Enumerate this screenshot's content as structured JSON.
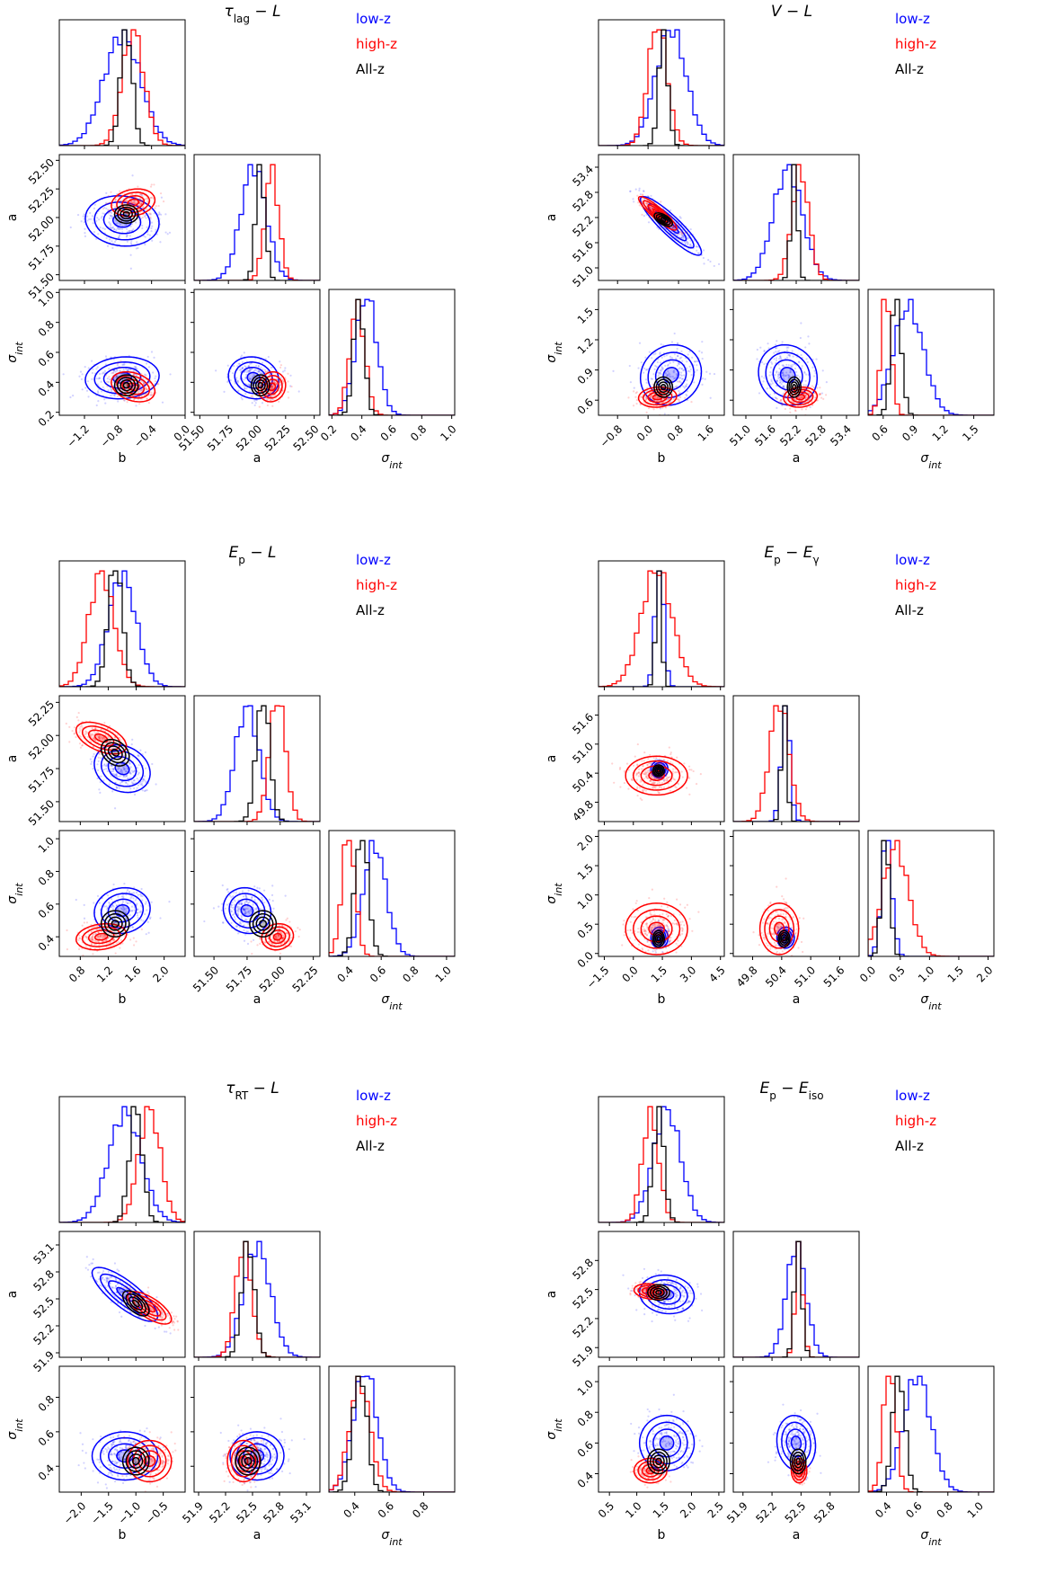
{
  "figure_type": "corner plots of posterior distributions",
  "colors": {
    "low": "#0000ff",
    "high": "#ff0000",
    "all": "#000000"
  },
  "chart_data": [
    {
      "type": "corner",
      "title": "τ_lag − L",
      "legend": [
        "low-z",
        "high-z",
        "All-z"
      ],
      "params": [
        "b",
        "a",
        "σ_int"
      ],
      "ranges": [
        [
          -1.5,
          0.0
        ],
        [
          51.45,
          52.55
        ],
        [
          0.18,
          1.02
        ]
      ],
      "ticks": [
        {
          "values": [
            -1.2,
            -0.8,
            -0.4,
            0.0
          ],
          "labels": [
            "−1.2",
            "−0.8",
            "−0.4",
            "0.0"
          ]
        },
        {
          "values": [
            51.5,
            51.75,
            52.0,
            52.25,
            52.5
          ],
          "labels": [
            "51.50",
            "51.75",
            "52.00",
            "52.25",
            "52.50"
          ]
        },
        {
          "values": [
            0.2,
            0.4,
            0.6,
            0.8,
            1.0
          ],
          "labels": [
            "0.2",
            "0.4",
            "0.6",
            "0.8",
            "1.0"
          ]
        }
      ],
      "series": [
        {
          "name": "low-z",
          "mean": [
            -0.75,
            51.97,
            0.43
          ],
          "std": [
            0.22,
            0.11,
            0.07
          ],
          "rho": [
            -0.1,
            0.1,
            -0.1
          ]
        },
        {
          "name": "high-z",
          "mean": [
            -0.62,
            52.13,
            0.37
          ],
          "std": [
            0.13,
            0.06,
            0.05
          ],
          "rho": [
            0.2,
            -0.3,
            0.1
          ]
        },
        {
          "name": "All-z",
          "mean": [
            -0.7,
            52.03,
            0.38
          ],
          "std": [
            0.07,
            0.04,
            0.035
          ],
          "rho": [
            0.0,
            0.0,
            0.0
          ]
        }
      ]
    },
    {
      "type": "corner",
      "title": "V − L",
      "legend": [
        "low-z",
        "high-z",
        "All-z"
      ],
      "params": [
        "b",
        "a",
        "σ_int"
      ],
      "ranges": [
        [
          -1.3,
          2.0
        ],
        [
          50.7,
          53.7
        ],
        [
          0.45,
          1.7
        ]
      ],
      "ticks": [
        {
          "values": [
            -0.8,
            0.0,
            0.8,
            1.6
          ],
          "labels": [
            "−0.8",
            "0.0",
            "0.8",
            "1.6"
          ]
        },
        {
          "values": [
            51.0,
            51.6,
            52.2,
            52.8,
            53.4
          ],
          "labels": [
            "51.0",
            "51.6",
            "52.2",
            "52.8",
            "53.4"
          ]
        },
        {
          "values": [
            0.6,
            0.9,
            1.2,
            1.5
          ],
          "labels": [
            "0.6",
            "0.9",
            "1.2",
            "1.5"
          ]
        }
      ],
      "series": [
        {
          "name": "low-z",
          "mean": [
            0.6,
            52.0,
            0.85
          ],
          "std": [
            0.4,
            0.35,
            0.15
          ],
          "rho": [
            -0.9,
            0.1,
            -0.1
          ]
        },
        {
          "name": "high-z",
          "mean": [
            0.25,
            52.3,
            0.63
          ],
          "std": [
            0.25,
            0.2,
            0.05
          ],
          "rho": [
            -0.9,
            0.1,
            0.1
          ]
        },
        {
          "name": "All-z",
          "mean": [
            0.4,
            52.15,
            0.73
          ],
          "std": [
            0.12,
            0.08,
            0.05
          ],
          "rho": [
            -0.6,
            0.0,
            0.0
          ]
        }
      ]
    },
    {
      "type": "corner",
      "title": "E_p − L",
      "legend": [
        "low-z",
        "high-z",
        "All-z"
      ],
      "params": [
        "b",
        "a",
        "σ_int"
      ],
      "ranges": [
        [
          0.5,
          2.3
        ],
        [
          51.35,
          52.3
        ],
        [
          0.28,
          1.05
        ]
      ],
      "ticks": [
        {
          "values": [
            0.8,
            1.2,
            1.6,
            2.0
          ],
          "labels": [
            "0.8",
            "1.2",
            "1.6",
            "2.0"
          ]
        },
        {
          "values": [
            51.5,
            51.75,
            52.0,
            52.25
          ],
          "labels": [
            "51.50",
            "51.75",
            "52.00",
            "52.25"
          ]
        },
        {
          "values": [
            0.4,
            0.6,
            0.8,
            1.0
          ],
          "labels": [
            "0.4",
            "0.6",
            "0.8",
            "1.0"
          ]
        }
      ],
      "series": [
        {
          "name": "low-z",
          "mean": [
            1.4,
            51.75,
            0.56
          ],
          "std": [
            0.2,
            0.09,
            0.07
          ],
          "rho": [
            -0.2,
            0.1,
            -0.1
          ]
        },
        {
          "name": "high-z",
          "mean": [
            1.1,
            51.98,
            0.4
          ],
          "std": [
            0.18,
            0.06,
            0.04
          ],
          "rho": [
            -0.5,
            0.2,
            0.1
          ]
        },
        {
          "name": "All-z",
          "mean": [
            1.3,
            51.87,
            0.48
          ],
          "std": [
            0.1,
            0.05,
            0.04
          ],
          "rho": [
            -0.3,
            0.0,
            0.0
          ]
        }
      ]
    },
    {
      "type": "corner",
      "title": "E_p − E_γ",
      "legend": [
        "low-z",
        "high-z",
        "All-z"
      ],
      "params": [
        "b",
        "a",
        "σ_int"
      ],
      "ranges": [
        [
          -1.8,
          4.7
        ],
        [
          49.4,
          52.0
        ],
        [
          -0.05,
          2.1
        ]
      ],
      "ticks": [
        {
          "values": [
            -1.5,
            0.0,
            1.5,
            3.0,
            4.5
          ],
          "labels": [
            "−1.5",
            "0.0",
            "1.5",
            "3.0",
            "4.5"
          ]
        },
        {
          "values": [
            49.8,
            50.4,
            51.0,
            51.6
          ],
          "labels": [
            "49.8",
            "50.4",
            "51.0",
            "51.6"
          ]
        },
        {
          "values": [
            0.0,
            0.5,
            1.0,
            1.5,
            2.0
          ],
          "labels": [
            "0.0",
            "0.5",
            "1.0",
            "1.5",
            "2.0"
          ]
        }
      ],
      "series": [
        {
          "name": "low-z",
          "mean": [
            1.35,
            50.48,
            0.27
          ],
          "std": [
            0.22,
            0.09,
            0.09
          ],
          "rho": [
            0.0,
            0.0,
            0.0
          ]
        },
        {
          "name": "high-z",
          "mean": [
            1.2,
            50.35,
            0.42
          ],
          "std": [
            0.8,
            0.2,
            0.22
          ],
          "rho": [
            0.0,
            0.0,
            0.0
          ]
        },
        {
          "name": "All-z",
          "mean": [
            1.3,
            50.45,
            0.25
          ],
          "std": [
            0.15,
            0.06,
            0.07
          ],
          "rho": [
            0.0,
            0.0,
            0.0
          ]
        }
      ]
    },
    {
      "type": "corner",
      "title": "τ_RT − L",
      "legend": [
        "low-z",
        "high-z",
        "All-z"
      ],
      "params": [
        "b",
        "a",
        "σ_int"
      ],
      "ranges": [
        [
          -2.4,
          -0.1
        ],
        [
          51.85,
          53.25
        ],
        [
          0.25,
          0.98
        ]
      ],
      "ticks": [
        {
          "values": [
            -2.0,
            -1.5,
            -1.0,
            -0.5
          ],
          "labels": [
            "−2.0",
            "−1.5",
            "−1.0",
            "−0.5"
          ]
        },
        {
          "values": [
            51.9,
            52.2,
            52.5,
            52.8,
            53.1
          ],
          "labels": [
            "51.9",
            "52.2",
            "52.5",
            "52.8",
            "53.1"
          ]
        },
        {
          "values": [
            0.4,
            0.6,
            0.8
          ],
          "labels": [
            "0.4",
            "0.6",
            "0.8"
          ]
        }
      ],
      "series": [
        {
          "name": "low-z",
          "mean": [
            -1.2,
            52.55,
            0.46
          ],
          "std": [
            0.3,
            0.15,
            0.07
          ],
          "rho": [
            -0.8,
            0.0,
            0.0
          ]
        },
        {
          "name": "high-z",
          "mean": [
            -0.75,
            52.4,
            0.43
          ],
          "std": [
            0.2,
            0.09,
            0.06
          ],
          "rho": [
            -0.7,
            0.0,
            0.0
          ]
        },
        {
          "name": "All-z",
          "mean": [
            -1.0,
            52.45,
            0.43
          ],
          "std": [
            0.12,
            0.07,
            0.04
          ],
          "rho": [
            -0.6,
            0.0,
            0.0
          ]
        }
      ]
    },
    {
      "type": "corner",
      "title": "E_p − E_iso",
      "legend": [
        "low-z",
        "high-z",
        "All-z"
      ],
      "params": [
        "b",
        "a",
        "σ_int"
      ],
      "ranges": [
        [
          0.3,
          2.6
        ],
        [
          51.8,
          53.1
        ],
        [
          0.28,
          1.1
        ]
      ],
      "ticks": [
        {
          "values": [
            0.5,
            1.0,
            1.5,
            2.0,
            2.5
          ],
          "labels": [
            "0.5",
            "1.0",
            "1.5",
            "2.0",
            "2.5"
          ]
        },
        {
          "values": [
            51.9,
            52.2,
            52.5,
            52.8
          ],
          "labels": [
            "51.9",
            "52.2",
            "52.5",
            "52.8"
          ]
        },
        {
          "values": [
            0.4,
            0.6,
            0.8,
            1.0
          ],
          "labels": [
            "0.4",
            "0.6",
            "0.8",
            "1.0"
          ]
        }
      ],
      "series": [
        {
          "name": "low-z",
          "mean": [
            1.55,
            52.45,
            0.6
          ],
          "std": [
            0.25,
            0.1,
            0.09
          ],
          "rho": [
            -0.1,
            0.0,
            -0.1
          ]
        },
        {
          "name": "high-z",
          "mean": [
            1.25,
            52.48,
            0.42
          ],
          "std": [
            0.15,
            0.04,
            0.04
          ],
          "rho": [
            -0.2,
            0.0,
            0.0
          ]
        },
        {
          "name": "All-z",
          "mean": [
            1.4,
            52.47,
            0.48
          ],
          "std": [
            0.1,
            0.04,
            0.04
          ],
          "rho": [
            0.0,
            0.0,
            0.0
          ]
        }
      ]
    }
  ]
}
